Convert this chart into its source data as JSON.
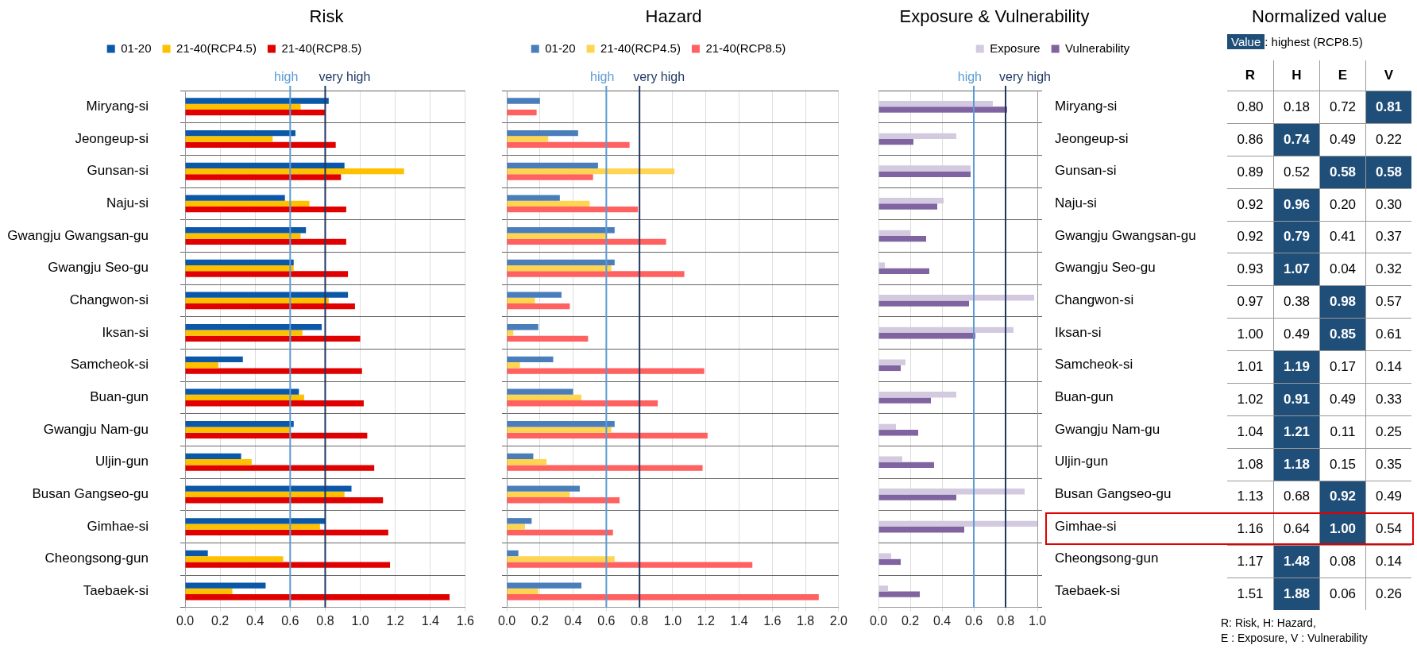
{
  "chart_data": [
    {
      "type": "bar",
      "orientation": "horizontal",
      "title": "Risk",
      "legend": "top",
      "grid": true,
      "categories": [
        "Miryang-si",
        "Jeongeup-si",
        "Gunsan-si",
        "Naju-si",
        "Gwangju Gwangsan-gu",
        "Gwangju Seo-gu",
        "Changwon-si",
        "Iksan-si",
        "Samcheok-si",
        "Buan-gun",
        "Gwangju Nam-gu",
        "Uljin-gun",
        "Busan Gangseo-gu",
        "Gimhae-si",
        "Cheongsong-gun",
        "Taebaek-si"
      ],
      "series": [
        {
          "name": "01-20",
          "color": "#0b57a8",
          "values": [
            0.82,
            0.63,
            0.91,
            0.57,
            0.69,
            0.62,
            0.93,
            0.78,
            0.33,
            0.65,
            0.62,
            0.32,
            0.95,
            0.8,
            0.13,
            0.46
          ]
        },
        {
          "name": "21-40(RCP4.5)",
          "color": "#ffc000",
          "values": [
            0.66,
            0.5,
            1.25,
            0.71,
            0.66,
            0.62,
            0.82,
            0.67,
            0.19,
            0.68,
            0.6,
            0.38,
            0.91,
            0.77,
            0.56,
            0.27
          ]
        },
        {
          "name": "21-40(RCP8.5)",
          "color": "#e00000",
          "values": [
            0.8,
            0.86,
            0.89,
            0.92,
            0.92,
            0.93,
            0.97,
            1.0,
            1.01,
            1.02,
            1.04,
            1.08,
            1.13,
            1.16,
            1.17,
            1.51
          ]
        }
      ],
      "xlim": [
        0,
        1.6
      ],
      "xticks": [
        {
          "value": 0,
          "label": "0.0"
        },
        0.2,
        0.4,
        0.6,
        0.8,
        {
          "value": 1,
          "label": "1.0"
        },
        1.2,
        1.4,
        1.6
      ],
      "ref_lines": [
        {
          "axis": "x",
          "value": 0.6,
          "label": "high",
          "color": "#5b9bd5"
        },
        {
          "axis": "x",
          "value": 0.8,
          "label": "very high",
          "color": "#1f3864"
        }
      ]
    },
    {
      "type": "bar",
      "orientation": "horizontal",
      "title": "Hazard",
      "legend": "top",
      "grid": true,
      "categories": [
        null,
        null,
        null,
        null,
        null,
        null,
        null,
        null,
        null,
        null,
        null,
        null,
        null,
        null,
        null,
        null
      ],
      "series": [
        {
          "name": "01-20",
          "color": "#4a7ebb",
          "values": [
            0.2,
            0.43,
            0.55,
            0.32,
            0.65,
            0.65,
            0.33,
            0.19,
            0.28,
            0.4,
            0.65,
            0.16,
            0.44,
            0.15,
            0.07,
            0.45
          ]
        },
        {
          "name": "21-40(RCP4.5)",
          "color": "#ffd450",
          "values": [
            null,
            0.25,
            1.01,
            0.5,
            0.6,
            0.63,
            0.17,
            0.04,
            0.08,
            0.45,
            0.63,
            0.24,
            0.38,
            0.11,
            0.65,
            0.19
          ]
        },
        {
          "name": "21-40(RCP8.5)",
          "color": "#ff6060",
          "values": [
            0.18,
            0.74,
            0.52,
            0.79,
            0.96,
            1.07,
            0.38,
            0.49,
            1.19,
            0.91,
            1.21,
            1.18,
            0.68,
            0.64,
            1.48,
            1.88
          ]
        }
      ],
      "xlim": [
        0,
        2
      ],
      "xticks": [
        {
          "value": 0,
          "label": "0.0"
        },
        0.2,
        0.4,
        0.6,
        0.8,
        {
          "value": 1,
          "label": "1.0"
        },
        1.2,
        1.4,
        1.6,
        1.8,
        {
          "value": 2,
          "label": "2.0"
        }
      ],
      "ref_lines": [
        {
          "axis": "x",
          "value": 0.6,
          "label": "high",
          "color": "#5b9bd5"
        },
        {
          "axis": "x",
          "value": 0.8,
          "label": "very high",
          "color": "#1f3864"
        }
      ]
    },
    {
      "type": "bar",
      "orientation": "horizontal",
      "title": "Exposure & Vulnerability",
      "legend": "top",
      "grid": true,
      "categories": [
        "Miryang-si",
        "Jeongeup-si",
        "Gunsan-si",
        "Naju-si",
        "Gwangju Gwangsan-gu",
        "Gwangju Seo-gu",
        "Changwon-si",
        "Iksan-si",
        "Samcheok-si",
        "Buan-gun",
        "Gwangju Nam-gu",
        "Uljin-gun",
        "Busan Gangseo-gu",
        "Gimhae-si",
        "Cheongsong-gun",
        "Taebaek-si"
      ],
      "series": [
        {
          "name": "Exposure",
          "color": "#d3cae0",
          "values": [
            0.72,
            0.49,
            0.58,
            0.41,
            0.2,
            0.04,
            0.98,
            0.85,
            0.17,
            0.49,
            0.11,
            0.15,
            0.92,
            1.0,
            0.08,
            0.06
          ]
        },
        {
          "name": "Vulnerability",
          "color": "#8064a2",
          "values": [
            0.81,
            0.22,
            0.58,
            0.37,
            0.3,
            0.32,
            0.57,
            0.61,
            0.14,
            0.33,
            0.25,
            0.35,
            0.49,
            0.54,
            0.14,
            0.26
          ]
        }
      ],
      "xlim": [
        0,
        1
      ],
      "xticks": [
        {
          "value": 0,
          "label": "0.0"
        },
        0.2,
        0.4,
        0.6,
        0.8,
        {
          "value": 1,
          "label": "1.0"
        }
      ],
      "ref_lines": [
        {
          "axis": "x",
          "value": 0.6,
          "label": "high",
          "color": "#5b9bd5"
        },
        {
          "axis": "x",
          "value": 0.8,
          "label": "very high",
          "color": "#1f3864"
        }
      ]
    },
    {
      "type": "heatmap",
      "title": "Normalized value",
      "categories": [
        "R",
        "H",
        "E",
        "V"
      ],
      "y_categories": [
        null,
        null,
        null,
        null,
        null,
        null,
        null,
        null,
        null,
        null,
        null,
        null,
        null,
        null,
        null,
        null
      ],
      "cells": [
        [
          0.8,
          0.18,
          0.72,
          0.81
        ],
        [
          0.86,
          0.74,
          0.49,
          0.22
        ],
        [
          0.89,
          0.52,
          0.58,
          0.58
        ],
        [
          0.92,
          0.96,
          0.2,
          0.3
        ],
        [
          0.92,
          0.79,
          0.41,
          0.37
        ],
        [
          0.93,
          1.07,
          0.04,
          0.32
        ],
        [
          0.97,
          0.38,
          0.98,
          0.57
        ],
        [
          1.0,
          0.49,
          0.85,
          0.61
        ],
        [
          1.01,
          1.19,
          0.17,
          0.14
        ],
        [
          1.02,
          0.91,
          0.49,
          0.33
        ],
        [
          1.04,
          1.21,
          0.11,
          0.25
        ],
        [
          1.08,
          1.18,
          0.15,
          0.35
        ],
        [
          1.13,
          0.68,
          0.92,
          0.49
        ],
        [
          1.16,
          0.64,
          1.0,
          0.54
        ],
        [
          1.17,
          1.48,
          0.08,
          0.14
        ],
        [
          1.51,
          1.88,
          0.06,
          0.26
        ]
      ],
      "cell_labels": [
        [
          "0.80",
          "0.18",
          "0.72",
          "0.81"
        ],
        [
          "0.86",
          "0.74",
          "0.49",
          "0.22"
        ],
        [
          "0.89",
          "0.52",
          "0.58",
          "0.58"
        ],
        [
          "0.92",
          "0.96",
          "0.20",
          "0.30"
        ],
        [
          "0.92",
          "0.79",
          "0.41",
          "0.37"
        ],
        [
          "0.93",
          "1.07",
          "0.04",
          "0.32"
        ],
        [
          "0.97",
          "0.38",
          "0.98",
          "0.57"
        ],
        [
          "1.00",
          "0.49",
          "0.85",
          "0.61"
        ],
        [
          "1.01",
          "1.19",
          "0.17",
          "0.14"
        ],
        [
          "1.02",
          "0.91",
          "0.49",
          "0.33"
        ],
        [
          "1.04",
          "1.21",
          "0.11",
          "0.25"
        ],
        [
          "1.08",
          "1.18",
          "0.15",
          "0.35"
        ],
        [
          "1.13",
          "0.68",
          "0.92",
          "0.49"
        ],
        [
          "1.16",
          "0.64",
          "1.00",
          "0.54"
        ],
        [
          "1.17",
          "1.48",
          "0.08",
          "0.14"
        ],
        [
          "1.51",
          "1.88",
          "0.06",
          "0.26"
        ]
      ],
      "annotations": [
        "Value",
        ": highest (RCP8.5)",
        "R: Risk, H: Hazard,",
        "E : Exposure, V : Vulnerability"
      ]
    }
  ]
}
